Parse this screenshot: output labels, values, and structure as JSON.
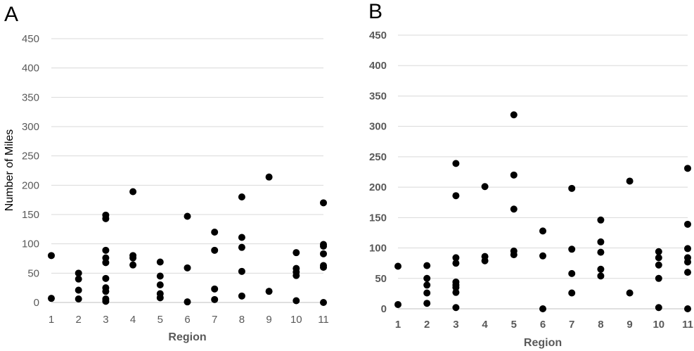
{
  "chart_data": [
    {
      "type": "scatter",
      "panel": "A",
      "ylabel": "Number of Miles",
      "xlabel": "Region",
      "xticks": [
        "1",
        "2",
        "3",
        "4",
        "5",
        "6",
        "7",
        "8",
        "9",
        "10",
        "11"
      ],
      "yticks": [
        "0",
        "50",
        "100",
        "150",
        "200",
        "250",
        "300",
        "350",
        "400",
        "450"
      ],
      "ylim": [
        0,
        450
      ],
      "grid": true,
      "points": [
        {
          "x": 1,
          "y": 80
        },
        {
          "x": 1,
          "y": 7
        },
        {
          "x": 2,
          "y": 50
        },
        {
          "x": 2,
          "y": 40
        },
        {
          "x": 2,
          "y": 21
        },
        {
          "x": 2,
          "y": 6
        },
        {
          "x": 3,
          "y": 149
        },
        {
          "x": 3,
          "y": 143
        },
        {
          "x": 3,
          "y": 89
        },
        {
          "x": 3,
          "y": 76
        },
        {
          "x": 3,
          "y": 68
        },
        {
          "x": 3,
          "y": 41
        },
        {
          "x": 3,
          "y": 25
        },
        {
          "x": 3,
          "y": 19
        },
        {
          "x": 3,
          "y": 6
        },
        {
          "x": 3,
          "y": 2
        },
        {
          "x": 4,
          "y": 189
        },
        {
          "x": 4,
          "y": 80
        },
        {
          "x": 4,
          "y": 76
        },
        {
          "x": 4,
          "y": 64
        },
        {
          "x": 5,
          "y": 69
        },
        {
          "x": 5,
          "y": 45
        },
        {
          "x": 5,
          "y": 30
        },
        {
          "x": 5,
          "y": 15
        },
        {
          "x": 5,
          "y": 8
        },
        {
          "x": 6,
          "y": 147
        },
        {
          "x": 6,
          "y": 59
        },
        {
          "x": 6,
          "y": 1
        },
        {
          "x": 7,
          "y": 120
        },
        {
          "x": 7,
          "y": 89
        },
        {
          "x": 7,
          "y": 23
        },
        {
          "x": 7,
          "y": 5
        },
        {
          "x": 8,
          "y": 180
        },
        {
          "x": 8,
          "y": 111
        },
        {
          "x": 8,
          "y": 94
        },
        {
          "x": 8,
          "y": 53
        },
        {
          "x": 8,
          "y": 11
        },
        {
          "x": 9,
          "y": 214
        },
        {
          "x": 9,
          "y": 19
        },
        {
          "x": 10,
          "y": 85
        },
        {
          "x": 10,
          "y": 58
        },
        {
          "x": 10,
          "y": 52
        },
        {
          "x": 10,
          "y": 46
        },
        {
          "x": 10,
          "y": 3
        },
        {
          "x": 11,
          "y": 170
        },
        {
          "x": 11,
          "y": 99
        },
        {
          "x": 11,
          "y": 96
        },
        {
          "x": 11,
          "y": 83
        },
        {
          "x": 11,
          "y": 63
        },
        {
          "x": 11,
          "y": 60
        },
        {
          "x": 11,
          "y": 0
        }
      ]
    },
    {
      "type": "scatter",
      "panel": "B",
      "xlabel": "Region",
      "xticks": [
        "1",
        "2",
        "3",
        "4",
        "5",
        "6",
        "7",
        "8",
        "9",
        "10",
        "11"
      ],
      "yticks": [
        "0",
        "50",
        "100",
        "150",
        "200",
        "250",
        "300",
        "350",
        "400",
        "450"
      ],
      "ylim": [
        0,
        450
      ],
      "grid": true,
      "points": [
        {
          "x": 1,
          "y": 70
        },
        {
          "x": 1,
          "y": 7
        },
        {
          "x": 2,
          "y": 71
        },
        {
          "x": 2,
          "y": 50
        },
        {
          "x": 2,
          "y": 39
        },
        {
          "x": 2,
          "y": 26
        },
        {
          "x": 2,
          "y": 9
        },
        {
          "x": 3,
          "y": 239
        },
        {
          "x": 3,
          "y": 186
        },
        {
          "x": 3,
          "y": 84
        },
        {
          "x": 3,
          "y": 75
        },
        {
          "x": 3,
          "y": 44
        },
        {
          "x": 3,
          "y": 39
        },
        {
          "x": 3,
          "y": 35
        },
        {
          "x": 3,
          "y": 27
        },
        {
          "x": 3,
          "y": 2
        },
        {
          "x": 4,
          "y": 201
        },
        {
          "x": 4,
          "y": 86
        },
        {
          "x": 4,
          "y": 79
        },
        {
          "x": 5,
          "y": 319
        },
        {
          "x": 5,
          "y": 220
        },
        {
          "x": 5,
          "y": 164
        },
        {
          "x": 5,
          "y": 95
        },
        {
          "x": 5,
          "y": 89
        },
        {
          "x": 6,
          "y": 128
        },
        {
          "x": 6,
          "y": 87
        },
        {
          "x": 6,
          "y": 0
        },
        {
          "x": 7,
          "y": 198
        },
        {
          "x": 7,
          "y": 98
        },
        {
          "x": 7,
          "y": 58
        },
        {
          "x": 7,
          "y": 26
        },
        {
          "x": 8,
          "y": 146
        },
        {
          "x": 8,
          "y": 110
        },
        {
          "x": 8,
          "y": 93
        },
        {
          "x": 8,
          "y": 65
        },
        {
          "x": 8,
          "y": 54
        },
        {
          "x": 9,
          "y": 210
        },
        {
          "x": 9,
          "y": 26
        },
        {
          "x": 10,
          "y": 94
        },
        {
          "x": 10,
          "y": 84
        },
        {
          "x": 10,
          "y": 72
        },
        {
          "x": 10,
          "y": 50
        },
        {
          "x": 10,
          "y": 2
        },
        {
          "x": 11,
          "y": 231
        },
        {
          "x": 11,
          "y": 139
        },
        {
          "x": 11,
          "y": 99
        },
        {
          "x": 11,
          "y": 84
        },
        {
          "x": 11,
          "y": 77
        },
        {
          "x": 11,
          "y": 60
        },
        {
          "x": 11,
          "y": 0
        }
      ]
    }
  ]
}
